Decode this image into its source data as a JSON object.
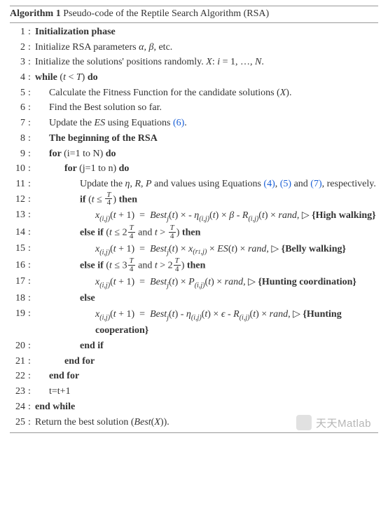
{
  "header": {
    "label": "Algorithm 1",
    "title": "Pseudo-code of the Reptile Search Algorithm (RSA)"
  },
  "links": {
    "eq6": "(6)",
    "eq4": "(4)",
    "eq5": "(5)",
    "eq7": "(7)"
  },
  "watermark": "天天Matlab",
  "lines": {
    "l1": "Initialization phase",
    "l2a": "Initialize RSA parameters ",
    "l2b": ", etc.",
    "l3a": "Initialize the solutions' positions randomly.  ",
    "l3b": ".",
    "l4a": "while ",
    "l4b": " do",
    "l5": "Calculate the Fitness Function for the candidate solutions (",
    "l5b": ").",
    "l6": "Find the Best solution so far.",
    "l7a": "Update the ",
    "l7b": " using Equations ",
    "l7c": ".",
    "l8": "The beginning of the RSA",
    "l9a": "for ",
    "l9b": "(i=1 to N)",
    "l9c": " do",
    "l10a": "for ",
    "l10b": "(j=1 to n)",
    "l10c": " do",
    "l11a": "Update the ",
    "l11b": " and values using Equations ",
    "l11c": " and ",
    "l11d": ", respectively.",
    "l12a": "if ",
    "l12b": " then",
    "l13note": "{High walking}",
    "l14a": "else if ",
    "l14b": " then",
    "l15note": "{Belly walking}",
    "l16a": "else if ",
    "l16b": " then",
    "l17note": "{Hunting coordination}",
    "l18": "else",
    "l19note": "{Hunting cooperation}",
    "l20": "end if",
    "l21": "end for",
    "l22": "end for",
    "l23": "t=t+1",
    "l24": "end while",
    "l25a": "Return the best solution (",
    "l25b": ")."
  }
}
